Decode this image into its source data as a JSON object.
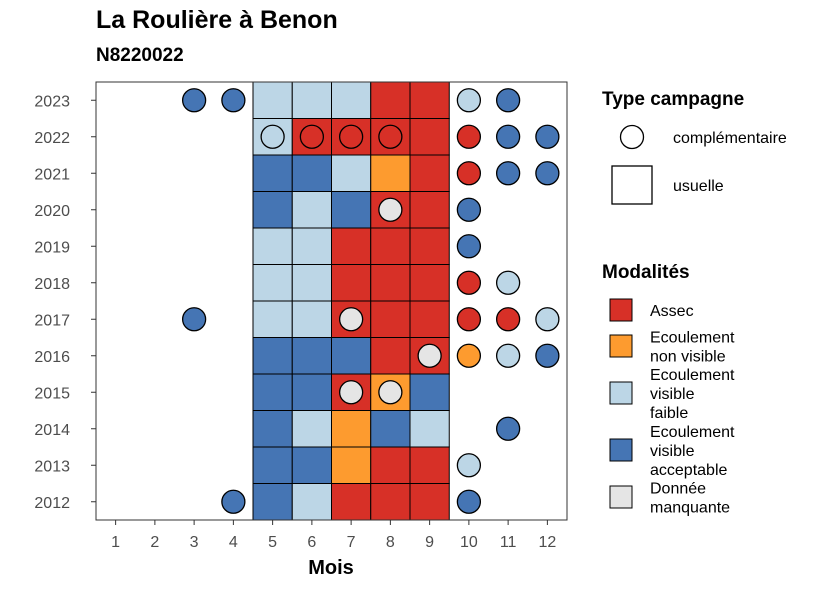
{
  "chart_data": {
    "type": "heatmap",
    "title": "La Roulière à Benon",
    "subtitle": "N8220022",
    "xlabel": "Mois",
    "ylabel": "",
    "x": [
      1,
      2,
      3,
      4,
      5,
      6,
      7,
      8,
      9,
      10,
      11,
      12
    ],
    "y": [
      2012,
      2013,
      2014,
      2015,
      2016,
      2017,
      2018,
      2019,
      2020,
      2021,
      2022,
      2023
    ],
    "colors": {
      "Assec": "#d73027",
      "Ecoulement non visible": "#fd9b2f",
      "Ecoulement visible faible": "#bcd6e6",
      "Ecoulement visible acceptable": "#4575b4",
      "Donnée manquante": "#e5e5e5"
    },
    "legend_type": {
      "title": "Type campagne",
      "entries": [
        "complémentaire",
        "usuelle"
      ]
    },
    "legend_modalites": {
      "title": "Modalités",
      "entries": [
        {
          "key": "Assec",
          "lines": [
            "Assec"
          ]
        },
        {
          "key": "Ecoulement non visible",
          "lines": [
            "Ecoulement",
            "non visible"
          ]
        },
        {
          "key": "Ecoulement visible faible",
          "lines": [
            "Ecoulement",
            "visible",
            "faible"
          ]
        },
        {
          "key": "Ecoulement visible acceptable",
          "lines": [
            "Ecoulement",
            "visible",
            "acceptable"
          ]
        },
        {
          "key": "Donnée manquante",
          "lines": [
            "Donnée",
            "manquante"
          ]
        }
      ]
    },
    "usuelle": [
      {
        "year": 2023,
        "month": 5,
        "mod": "Ecoulement visible faible"
      },
      {
        "year": 2023,
        "month": 6,
        "mod": "Ecoulement visible faible"
      },
      {
        "year": 2023,
        "month": 7,
        "mod": "Ecoulement visible faible"
      },
      {
        "year": 2023,
        "month": 8,
        "mod": "Assec"
      },
      {
        "year": 2023,
        "month": 9,
        "mod": "Assec"
      },
      {
        "year": 2022,
        "month": 5,
        "mod": "Ecoulement visible faible"
      },
      {
        "year": 2022,
        "month": 6,
        "mod": "Assec"
      },
      {
        "year": 2022,
        "month": 7,
        "mod": "Assec"
      },
      {
        "year": 2022,
        "month": 8,
        "mod": "Assec"
      },
      {
        "year": 2022,
        "month": 9,
        "mod": "Assec"
      },
      {
        "year": 2021,
        "month": 5,
        "mod": "Ecoulement visible acceptable"
      },
      {
        "year": 2021,
        "month": 6,
        "mod": "Ecoulement visible acceptable"
      },
      {
        "year": 2021,
        "month": 7,
        "mod": "Ecoulement visible faible"
      },
      {
        "year": 2021,
        "month": 8,
        "mod": "Ecoulement non visible"
      },
      {
        "year": 2021,
        "month": 9,
        "mod": "Assec"
      },
      {
        "year": 2020,
        "month": 5,
        "mod": "Ecoulement visible acceptable"
      },
      {
        "year": 2020,
        "month": 6,
        "mod": "Ecoulement visible faible"
      },
      {
        "year": 2020,
        "month": 7,
        "mod": "Ecoulement visible acceptable"
      },
      {
        "year": 2020,
        "month": 8,
        "mod": "Assec"
      },
      {
        "year": 2020,
        "month": 9,
        "mod": "Assec"
      },
      {
        "year": 2019,
        "month": 5,
        "mod": "Ecoulement visible faible"
      },
      {
        "year": 2019,
        "month": 6,
        "mod": "Ecoulement visible faible"
      },
      {
        "year": 2019,
        "month": 7,
        "mod": "Assec"
      },
      {
        "year": 2019,
        "month": 8,
        "mod": "Assec"
      },
      {
        "year": 2019,
        "month": 9,
        "mod": "Assec"
      },
      {
        "year": 2018,
        "month": 5,
        "mod": "Ecoulement visible faible"
      },
      {
        "year": 2018,
        "month": 6,
        "mod": "Ecoulement visible faible"
      },
      {
        "year": 2018,
        "month": 7,
        "mod": "Assec"
      },
      {
        "year": 2018,
        "month": 8,
        "mod": "Assec"
      },
      {
        "year": 2018,
        "month": 9,
        "mod": "Assec"
      },
      {
        "year": 2017,
        "month": 5,
        "mod": "Ecoulement visible faible"
      },
      {
        "year": 2017,
        "month": 6,
        "mod": "Ecoulement visible faible"
      },
      {
        "year": 2017,
        "month": 7,
        "mod": "Assec"
      },
      {
        "year": 2017,
        "month": 8,
        "mod": "Assec"
      },
      {
        "year": 2017,
        "month": 9,
        "mod": "Assec"
      },
      {
        "year": 2016,
        "month": 5,
        "mod": "Ecoulement visible acceptable"
      },
      {
        "year": 2016,
        "month": 6,
        "mod": "Ecoulement visible acceptable"
      },
      {
        "year": 2016,
        "month": 7,
        "mod": "Ecoulement visible acceptable"
      },
      {
        "year": 2016,
        "month": 8,
        "mod": "Assec"
      },
      {
        "year": 2016,
        "month": 9,
        "mod": "Assec"
      },
      {
        "year": 2015,
        "month": 5,
        "mod": "Ecoulement visible acceptable"
      },
      {
        "year": 2015,
        "month": 6,
        "mod": "Ecoulement visible acceptable"
      },
      {
        "year": 2015,
        "month": 7,
        "mod": "Assec"
      },
      {
        "year": 2015,
        "month": 8,
        "mod": "Ecoulement non visible"
      },
      {
        "year": 2015,
        "month": 9,
        "mod": "Ecoulement visible acceptable"
      },
      {
        "year": 2014,
        "month": 5,
        "mod": "Ecoulement visible acceptable"
      },
      {
        "year": 2014,
        "month": 6,
        "mod": "Ecoulement visible faible"
      },
      {
        "year": 2014,
        "month": 7,
        "mod": "Ecoulement non visible"
      },
      {
        "year": 2014,
        "month": 8,
        "mod": "Ecoulement visible acceptable"
      },
      {
        "year": 2014,
        "month": 9,
        "mod": "Ecoulement visible faible"
      },
      {
        "year": 2013,
        "month": 5,
        "mod": "Ecoulement visible acceptable"
      },
      {
        "year": 2013,
        "month": 6,
        "mod": "Ecoulement visible acceptable"
      },
      {
        "year": 2013,
        "month": 7,
        "mod": "Ecoulement non visible"
      },
      {
        "year": 2013,
        "month": 8,
        "mod": "Assec"
      },
      {
        "year": 2013,
        "month": 9,
        "mod": "Assec"
      },
      {
        "year": 2012,
        "month": 5,
        "mod": "Ecoulement visible acceptable"
      },
      {
        "year": 2012,
        "month": 6,
        "mod": "Ecoulement visible faible"
      },
      {
        "year": 2012,
        "month": 7,
        "mod": "Assec"
      },
      {
        "year": 2012,
        "month": 8,
        "mod": "Assec"
      },
      {
        "year": 2012,
        "month": 9,
        "mod": "Assec"
      }
    ],
    "complementaire": [
      {
        "year": 2023,
        "month": 3,
        "mod": "Ecoulement visible acceptable"
      },
      {
        "year": 2023,
        "month": 4,
        "mod": "Ecoulement visible acceptable"
      },
      {
        "year": 2023,
        "month": 10,
        "mod": "Ecoulement visible faible"
      },
      {
        "year": 2023,
        "month": 11,
        "mod": "Ecoulement visible acceptable"
      },
      {
        "year": 2022,
        "month": 5,
        "mod": "Ecoulement visible faible"
      },
      {
        "year": 2022,
        "month": 6,
        "mod": "Assec"
      },
      {
        "year": 2022,
        "month": 7,
        "mod": "Assec"
      },
      {
        "year": 2022,
        "month": 8,
        "mod": "Assec"
      },
      {
        "year": 2022,
        "month": 10,
        "mod": "Assec"
      },
      {
        "year": 2022,
        "month": 11,
        "mod": "Ecoulement visible acceptable"
      },
      {
        "year": 2022,
        "month": 12,
        "mod": "Ecoulement visible acceptable"
      },
      {
        "year": 2021,
        "month": 10,
        "mod": "Assec"
      },
      {
        "year": 2021,
        "month": 11,
        "mod": "Ecoulement visible acceptable"
      },
      {
        "year": 2021,
        "month": 12,
        "mod": "Ecoulement visible acceptable"
      },
      {
        "year": 2020,
        "month": 8,
        "mod": "Donnée manquante"
      },
      {
        "year": 2020,
        "month": 10,
        "mod": "Ecoulement visible acceptable"
      },
      {
        "year": 2019,
        "month": 10,
        "mod": "Ecoulement visible acceptable"
      },
      {
        "year": 2018,
        "month": 10,
        "mod": "Assec"
      },
      {
        "year": 2018,
        "month": 11,
        "mod": "Ecoulement visible faible"
      },
      {
        "year": 2017,
        "month": 3,
        "mod": "Ecoulement visible acceptable"
      },
      {
        "year": 2017,
        "month": 7,
        "mod": "Donnée manquante"
      },
      {
        "year": 2017,
        "month": 10,
        "mod": "Assec"
      },
      {
        "year": 2017,
        "month": 11,
        "mod": "Assec"
      },
      {
        "year": 2017,
        "month": 12,
        "mod": "Ecoulement visible faible"
      },
      {
        "year": 2016,
        "month": 9,
        "mod": "Donnée manquante"
      },
      {
        "year": 2016,
        "month": 10,
        "mod": "Ecoulement non visible"
      },
      {
        "year": 2016,
        "month": 11,
        "mod": "Ecoulement visible faible"
      },
      {
        "year": 2016,
        "month": 12,
        "mod": "Ecoulement visible acceptable"
      },
      {
        "year": 2015,
        "month": 7,
        "mod": "Donnée manquante"
      },
      {
        "year": 2015,
        "month": 8,
        "mod": "Donnée manquante"
      },
      {
        "year": 2014,
        "month": 11,
        "mod": "Ecoulement visible acceptable"
      },
      {
        "year": 2013,
        "month": 10,
        "mod": "Ecoulement visible faible"
      },
      {
        "year": 2012,
        "month": 4,
        "mod": "Ecoulement visible acceptable"
      },
      {
        "year": 2012,
        "month": 10,
        "mod": "Ecoulement visible acceptable"
      }
    ]
  }
}
